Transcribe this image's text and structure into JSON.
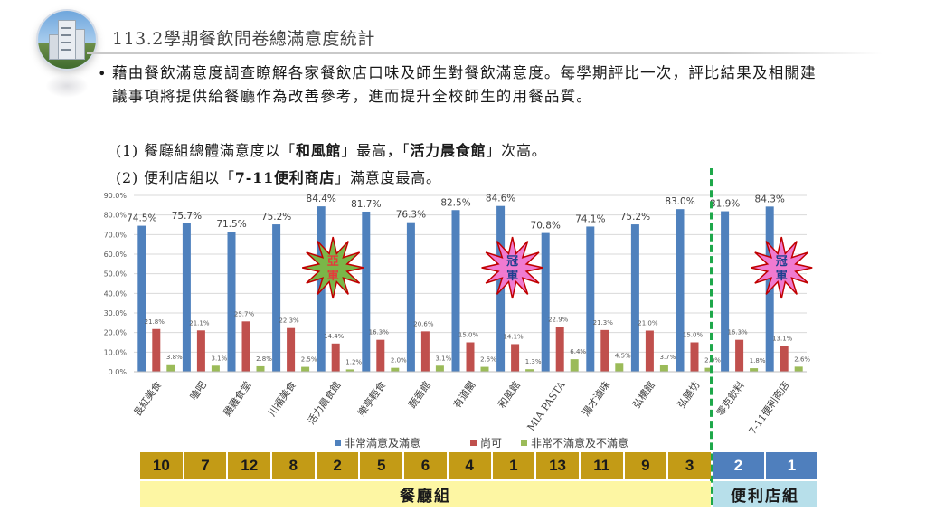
{
  "page": {
    "title": "113.2學期餐飲問卷總滿意度統計",
    "intro": "藉由餐飲滿意度調查瞭解各家餐飲店口味及師生對餐飲滿意度。每學期評比一次，評比結果及相關建議事項將提供給餐廳作為改善參考，進而提升全校師生的用餐品質。",
    "point1": {
      "prefix": "(1) 餐廳組總體滿意度以「",
      "best": "和風館",
      "middle": "」最高，「",
      "second": "活力晨食館",
      "suffix": "」次高。"
    },
    "point2": {
      "prefix": "(2) 便利店組以「",
      "best": "7-11便利商店",
      "suffix": "」滿意度最高。"
    }
  },
  "chart_data": {
    "type": "bar",
    "categories": [
      "長紅美食",
      "嗑吧",
      "雞雞食堂",
      "川福美食",
      "活力晨食館",
      "樂亭輕食",
      "蔬香館",
      "有道閣",
      "和風館",
      "MIA PASTA",
      "湯才滷味",
      "弘樓館",
      "弘膳坊",
      "零克飲料",
      "7-11便利商店"
    ],
    "series": [
      {
        "name": "非常滿意及滿意",
        "color": "#4f81bd",
        "values": [
          74.5,
          75.7,
          71.5,
          75.2,
          84.4,
          81.7,
          76.3,
          82.5,
          84.6,
          70.8,
          74.1,
          75.2,
          83.0,
          81.9,
          84.3
        ]
      },
      {
        "name": "尚可",
        "color": "#c0504d",
        "values": [
          21.8,
          21.1,
          25.7,
          22.3,
          14.4,
          16.3,
          20.6,
          15.0,
          14.1,
          22.9,
          21.3,
          21.0,
          15.0,
          16.3,
          13.1
        ]
      },
      {
        "name": "非常不滿意及不滿意",
        "color": "#9bbb59",
        "values": [
          3.8,
          3.1,
          2.8,
          2.5,
          1.2,
          2.0,
          3.1,
          2.5,
          1.3,
          6.4,
          4.5,
          3.7,
          2.0,
          1.8,
          2.6
        ]
      }
    ],
    "yticks": [
      "0.0%",
      "10.0%",
      "20.0%",
      "30.0%",
      "40.0%",
      "50.0%",
      "60.0%",
      "70.0%",
      "80.0%",
      "90.0%"
    ],
    "ylim": [
      0,
      90
    ],
    "grid": true,
    "legend_position": "bottom",
    "annotations": [
      {
        "category": "活力晨食館",
        "text": [
          "亞",
          "軍"
        ],
        "fill": "#7ab648",
        "text_color": "#e33b3b"
      },
      {
        "category": "和風館",
        "text": [
          "冠",
          "軍"
        ],
        "fill": "#f07ad0",
        "text_color": "#1f3f8f"
      },
      {
        "category": "7-11便利商店",
        "text": [
          "冠",
          "軍"
        ],
        "fill": "#f07ad0",
        "text_color": "#1f3f8f"
      }
    ]
  },
  "ranking": {
    "restaurant": [
      "10",
      "7",
      "12",
      "8",
      "2",
      "5",
      "6",
      "4",
      "1",
      "13",
      "11",
      "9",
      "3"
    ],
    "store": [
      "2",
      "1"
    ],
    "restaurant_label": "餐廳組",
    "store_label": "便利店組"
  }
}
